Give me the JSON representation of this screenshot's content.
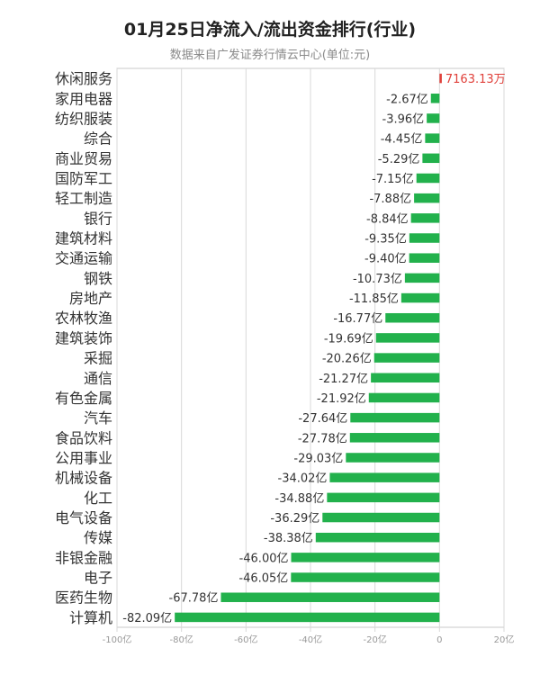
{
  "chart_data": {
    "type": "bar",
    "orientation": "horizontal",
    "title": "01月25日净流入/流出资金排行(行业)",
    "subtitle": "数据来自广发证券行情云中心(单位:元)",
    "xlim": [
      -100,
      20
    ],
    "x_ticks": [
      {
        "value": -100,
        "label": "-100亿"
      },
      {
        "value": -80,
        "label": "-80亿"
      },
      {
        "value": -60,
        "label": "-60亿"
      },
      {
        "value": -40,
        "label": "-40亿"
      },
      {
        "value": -20,
        "label": "-20亿"
      },
      {
        "value": 0,
        "label": "0"
      },
      {
        "value": 20,
        "label": "20亿"
      }
    ],
    "grid": true,
    "colors": {
      "positive": "#e0403a",
      "negative": "#22b14c",
      "grid": "#d9d9d9",
      "axis": "#c8c8c8",
      "tick_text": "#999999"
    },
    "bars": [
      {
        "category": "休闲服务",
        "value": 0.716313,
        "label": "7163.13万"
      },
      {
        "category": "家用电器",
        "value": -2.67,
        "label": "-2.67亿"
      },
      {
        "category": "纺织服装",
        "value": -3.96,
        "label": "-3.96亿"
      },
      {
        "category": "综合",
        "value": -4.45,
        "label": "-4.45亿"
      },
      {
        "category": "商业贸易",
        "value": -5.29,
        "label": "-5.29亿"
      },
      {
        "category": "国防军工",
        "value": -7.15,
        "label": "-7.15亿"
      },
      {
        "category": "轻工制造",
        "value": -7.88,
        "label": "-7.88亿"
      },
      {
        "category": "银行",
        "value": -8.84,
        "label": "-8.84亿"
      },
      {
        "category": "建筑材料",
        "value": -9.35,
        "label": "-9.35亿"
      },
      {
        "category": "交通运输",
        "value": -9.4,
        "label": "-9.40亿"
      },
      {
        "category": "钢铁",
        "value": -10.73,
        "label": "-10.73亿"
      },
      {
        "category": "房地产",
        "value": -11.85,
        "label": "-11.85亿"
      },
      {
        "category": "农林牧渔",
        "value": -16.77,
        "label": "-16.77亿"
      },
      {
        "category": "建筑装饰",
        "value": -19.69,
        "label": "-19.69亿"
      },
      {
        "category": "采掘",
        "value": -20.26,
        "label": "-20.26亿"
      },
      {
        "category": "通信",
        "value": -21.27,
        "label": "-21.27亿"
      },
      {
        "category": "有色金属",
        "value": -21.92,
        "label": "-21.92亿"
      },
      {
        "category": "汽车",
        "value": -27.64,
        "label": "-27.64亿"
      },
      {
        "category": "食品饮料",
        "value": -27.78,
        "label": "-27.78亿"
      },
      {
        "category": "公用事业",
        "value": -29.03,
        "label": "-29.03亿"
      },
      {
        "category": "机械设备",
        "value": -34.02,
        "label": "-34.02亿"
      },
      {
        "category": "化工",
        "value": -34.88,
        "label": "-34.88亿"
      },
      {
        "category": "电气设备",
        "value": -36.29,
        "label": "-36.29亿"
      },
      {
        "category": "传媒",
        "value": -38.38,
        "label": "-38.38亿"
      },
      {
        "category": "非银金融",
        "value": -46.0,
        "label": "-46.00亿"
      },
      {
        "category": "电子",
        "value": -46.05,
        "label": "-46.05亿"
      },
      {
        "category": "医药生物",
        "value": -67.78,
        "label": "-67.78亿"
      },
      {
        "category": "计算机",
        "value": -82.09,
        "label": "-82.09亿"
      }
    ]
  }
}
